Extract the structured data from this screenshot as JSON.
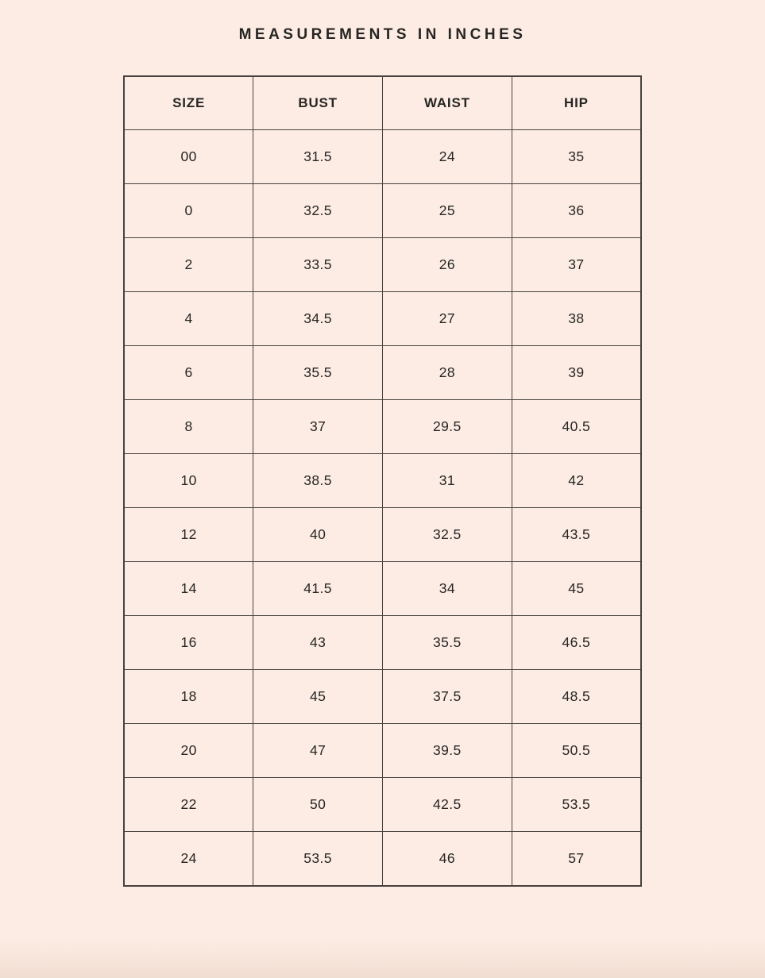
{
  "page": {
    "title": "MEASUREMENTS IN INCHES"
  },
  "theme": {
    "background_color": "#fcece3",
    "border_color": "#47423f",
    "text_color": "#262523"
  },
  "table": {
    "columns": [
      "SIZE",
      "BUST",
      "WAIST",
      "HIP"
    ],
    "rows": [
      [
        "00",
        "31.5",
        "24",
        "35"
      ],
      [
        "0",
        "32.5",
        "25",
        "36"
      ],
      [
        "2",
        "33.5",
        "26",
        "37"
      ],
      [
        "4",
        "34.5",
        "27",
        "38"
      ],
      [
        "6",
        "35.5",
        "28",
        "39"
      ],
      [
        "8",
        "37",
        "29.5",
        "40.5"
      ],
      [
        "10",
        "38.5",
        "31",
        "42"
      ],
      [
        "12",
        "40",
        "32.5",
        "43.5"
      ],
      [
        "14",
        "41.5",
        "34",
        "45"
      ],
      [
        "16",
        "43",
        "35.5",
        "46.5"
      ],
      [
        "18",
        "45",
        "37.5",
        "48.5"
      ],
      [
        "20",
        "47",
        "39.5",
        "50.5"
      ],
      [
        "22",
        "50",
        "42.5",
        "53.5"
      ],
      [
        "24",
        "53.5",
        "46",
        "57"
      ]
    ]
  },
  "chart_data": {
    "type": "table",
    "title": "MEASUREMENTS IN INCHES",
    "columns": [
      "SIZE",
      "BUST",
      "WAIST",
      "HIP"
    ],
    "rows": [
      [
        "00",
        31.5,
        24,
        35
      ],
      [
        "0",
        32.5,
        25,
        36
      ],
      [
        "2",
        33.5,
        26,
        37
      ],
      [
        "4",
        34.5,
        27,
        38
      ],
      [
        "6",
        35.5,
        28,
        39
      ],
      [
        "8",
        37,
        29.5,
        40.5
      ],
      [
        "10",
        38.5,
        31,
        42
      ],
      [
        "12",
        40,
        32.5,
        43.5
      ],
      [
        "14",
        41.5,
        34,
        45
      ],
      [
        "16",
        43,
        35.5,
        46.5
      ],
      [
        "18",
        45,
        37.5,
        48.5
      ],
      [
        "20",
        47,
        39.5,
        50.5
      ],
      [
        "22",
        50,
        42.5,
        53.5
      ],
      [
        "24",
        53.5,
        46,
        57
      ]
    ]
  }
}
